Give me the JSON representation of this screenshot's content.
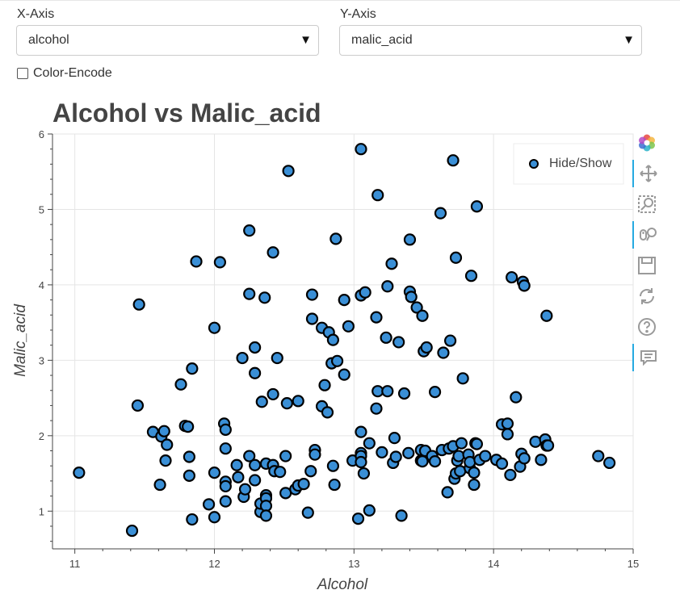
{
  "controls": {
    "x_axis_label": "X-Axis",
    "x_axis_value": "alcohol",
    "y_axis_label": "Y-Axis",
    "y_axis_value": "malic_acid",
    "dropdown_arrow": "▼",
    "color_encode_label": "Color-Encode",
    "color_encode_checked": false
  },
  "toolbar": {
    "tools": [
      {
        "name": "bokeh-logo-icon",
        "active": false
      },
      {
        "name": "pan-icon",
        "active": true
      },
      {
        "name": "box-zoom-icon",
        "active": false
      },
      {
        "name": "wheel-zoom-icon",
        "active": true
      },
      {
        "name": "save-icon",
        "active": false
      },
      {
        "name": "reset-icon",
        "active": false
      },
      {
        "name": "help-icon",
        "active": false
      },
      {
        "name": "hover-icon",
        "active": true
      }
    ]
  },
  "colors": {
    "marker_fill": "#3a8fd6",
    "marker_stroke": "#000000",
    "grid": "#e5e5e5",
    "title": "#444444",
    "toolbar_active": "#26aae1"
  },
  "chart_data": {
    "type": "scatter",
    "title": "Alcohol vs Malic_acid",
    "xlabel": "Alcohol",
    "ylabel": "Malic_acid",
    "xlim": [
      10.84,
      15.0
    ],
    "ylim": [
      0.5,
      6.0
    ],
    "xticks": [
      "11",
      "12",
      "13",
      "14",
      "15"
    ],
    "yticks": [
      "1",
      "2",
      "3",
      "4",
      "5",
      "6"
    ],
    "grid": true,
    "legend": {
      "label": "Hide/Show",
      "placement": "top-right"
    },
    "series": [
      {
        "name": "Hide/Show",
        "points": [
          [
            11.03,
            1.51
          ],
          [
            11.41,
            0.74
          ],
          [
            11.45,
            2.4
          ],
          [
            11.46,
            3.74
          ],
          [
            11.56,
            2.05
          ],
          [
            11.61,
            1.35
          ],
          [
            11.62,
            1.99
          ],
          [
            11.64,
            2.06
          ],
          [
            11.65,
            1.67
          ],
          [
            11.66,
            1.88
          ],
          [
            11.76,
            2.68
          ],
          [
            11.79,
            2.13
          ],
          [
            11.81,
            2.12
          ],
          [
            11.82,
            1.72
          ],
          [
            11.82,
            1.47
          ],
          [
            11.84,
            0.89
          ],
          [
            11.84,
            2.89
          ],
          [
            11.87,
            4.31
          ],
          [
            11.96,
            1.09
          ],
          [
            12.0,
            3.43
          ],
          [
            12.0,
            0.92
          ],
          [
            12.0,
            1.51
          ],
          [
            12.04,
            4.3
          ],
          [
            12.07,
            2.16
          ],
          [
            12.08,
            1.83
          ],
          [
            12.08,
            1.13
          ],
          [
            12.08,
            1.39
          ],
          [
            12.08,
            2.08
          ],
          [
            12.08,
            1.33
          ],
          [
            12.16,
            1.61
          ],
          [
            12.17,
            1.45
          ],
          [
            12.2,
            3.03
          ],
          [
            12.21,
            1.19
          ],
          [
            12.22,
            1.29
          ],
          [
            12.25,
            4.72
          ],
          [
            12.25,
            3.88
          ],
          [
            12.25,
            1.73
          ],
          [
            12.29,
            3.17
          ],
          [
            12.29,
            2.83
          ],
          [
            12.29,
            1.61
          ],
          [
            12.29,
            1.41
          ],
          [
            12.33,
            0.99
          ],
          [
            12.33,
            1.1
          ],
          [
            12.34,
            2.45
          ],
          [
            12.36,
            3.83
          ],
          [
            12.37,
            1.63
          ],
          [
            12.37,
            1.21
          ],
          [
            12.37,
            1.17
          ],
          [
            12.37,
            1.07
          ],
          [
            12.37,
            0.94
          ],
          [
            12.42,
            2.55
          ],
          [
            12.42,
            1.61
          ],
          [
            12.42,
            4.43
          ],
          [
            12.43,
            1.53
          ],
          [
            12.45,
            3.03
          ],
          [
            12.47,
            1.52
          ],
          [
            12.51,
            1.73
          ],
          [
            12.51,
            1.24
          ],
          [
            12.52,
            2.43
          ],
          [
            12.53,
            5.51
          ],
          [
            12.58,
            1.29
          ],
          [
            12.6,
            1.34
          ],
          [
            12.6,
            2.46
          ],
          [
            12.64,
            1.36
          ],
          [
            12.67,
            0.98
          ],
          [
            12.69,
            1.53
          ],
          [
            12.7,
            3.55
          ],
          [
            12.7,
            3.87
          ],
          [
            12.72,
            1.81
          ],
          [
            12.72,
            1.75
          ],
          [
            12.77,
            3.43
          ],
          [
            12.77,
            2.39
          ],
          [
            12.79,
            2.67
          ],
          [
            12.81,
            2.31
          ],
          [
            12.82,
            3.37
          ],
          [
            12.84,
            2.96
          ],
          [
            12.85,
            3.27
          ],
          [
            12.85,
            1.6
          ],
          [
            12.86,
            1.35
          ],
          [
            12.87,
            4.61
          ],
          [
            12.88,
            2.99
          ],
          [
            12.93,
            3.8
          ],
          [
            12.93,
            2.81
          ],
          [
            12.96,
            3.45
          ],
          [
            12.99,
            1.67
          ],
          [
            13.03,
            0.9
          ],
          [
            13.05,
            5.8
          ],
          [
            13.05,
            3.86
          ],
          [
            13.05,
            2.05
          ],
          [
            13.05,
            1.77
          ],
          [
            13.05,
            1.73
          ],
          [
            13.05,
            1.65
          ],
          [
            13.07,
            1.5
          ],
          [
            13.08,
            3.9
          ],
          [
            13.11,
            1.01
          ],
          [
            13.11,
            1.9
          ],
          [
            13.16,
            3.57
          ],
          [
            13.16,
            2.36
          ],
          [
            13.17,
            5.19
          ],
          [
            13.17,
            2.59
          ],
          [
            13.2,
            1.78
          ],
          [
            13.23,
            3.3
          ],
          [
            13.24,
            2.59
          ],
          [
            13.24,
            3.98
          ],
          [
            13.27,
            4.28
          ],
          [
            13.28,
            1.64
          ],
          [
            13.29,
            1.97
          ],
          [
            13.3,
            1.72
          ],
          [
            13.32,
            3.24
          ],
          [
            13.34,
            0.94
          ],
          [
            13.36,
            2.56
          ],
          [
            13.39,
            1.77
          ],
          [
            13.4,
            3.91
          ],
          [
            13.4,
            4.6
          ],
          [
            13.41,
            3.84
          ],
          [
            13.45,
            3.7
          ],
          [
            13.48,
            1.81
          ],
          [
            13.48,
            1.67
          ],
          [
            13.49,
            1.66
          ],
          [
            13.49,
            3.59
          ],
          [
            13.5,
            3.12
          ],
          [
            13.51,
            1.8
          ],
          [
            13.52,
            3.17
          ],
          [
            13.56,
            1.71
          ],
          [
            13.56,
            1.73
          ],
          [
            13.58,
            1.66
          ],
          [
            13.58,
            2.58
          ],
          [
            13.62,
            4.95
          ],
          [
            13.63,
            1.81
          ],
          [
            13.64,
            3.1
          ],
          [
            13.67,
            1.25
          ],
          [
            13.68,
            1.83
          ],
          [
            13.69,
            3.26
          ],
          [
            13.71,
            1.86
          ],
          [
            13.71,
            5.65
          ],
          [
            13.72,
            1.43
          ],
          [
            13.73,
            1.5
          ],
          [
            13.73,
            4.36
          ],
          [
            13.74,
            1.67
          ],
          [
            13.75,
            1.73
          ],
          [
            13.76,
            1.53
          ],
          [
            13.77,
            1.9
          ],
          [
            13.78,
            2.76
          ],
          [
            13.82,
            1.75
          ],
          [
            13.83,
            1.57
          ],
          [
            13.83,
            1.65
          ],
          [
            13.84,
            4.12
          ],
          [
            13.86,
            1.35
          ],
          [
            13.86,
            1.51
          ],
          [
            13.87,
            1.9
          ],
          [
            13.88,
            1.89
          ],
          [
            13.88,
            5.04
          ],
          [
            13.9,
            1.68
          ],
          [
            13.94,
            1.73
          ],
          [
            14.02,
            1.68
          ],
          [
            14.06,
            1.63
          ],
          [
            14.06,
            2.15
          ],
          [
            14.1,
            2.16
          ],
          [
            14.1,
            2.02
          ],
          [
            14.12,
            1.48
          ],
          [
            14.13,
            4.1
          ],
          [
            14.16,
            2.51
          ],
          [
            14.19,
            1.59
          ],
          [
            14.2,
            1.76
          ],
          [
            14.21,
            4.04
          ],
          [
            14.22,
            3.99
          ],
          [
            14.22,
            1.7
          ],
          [
            14.3,
            1.92
          ],
          [
            14.34,
            1.68
          ],
          [
            14.37,
            1.95
          ],
          [
            14.38,
            1.87
          ],
          [
            14.38,
            3.59
          ],
          [
            14.39,
            1.87
          ],
          [
            14.75,
            1.73
          ],
          [
            14.83,
            1.64
          ]
        ]
      }
    ]
  }
}
